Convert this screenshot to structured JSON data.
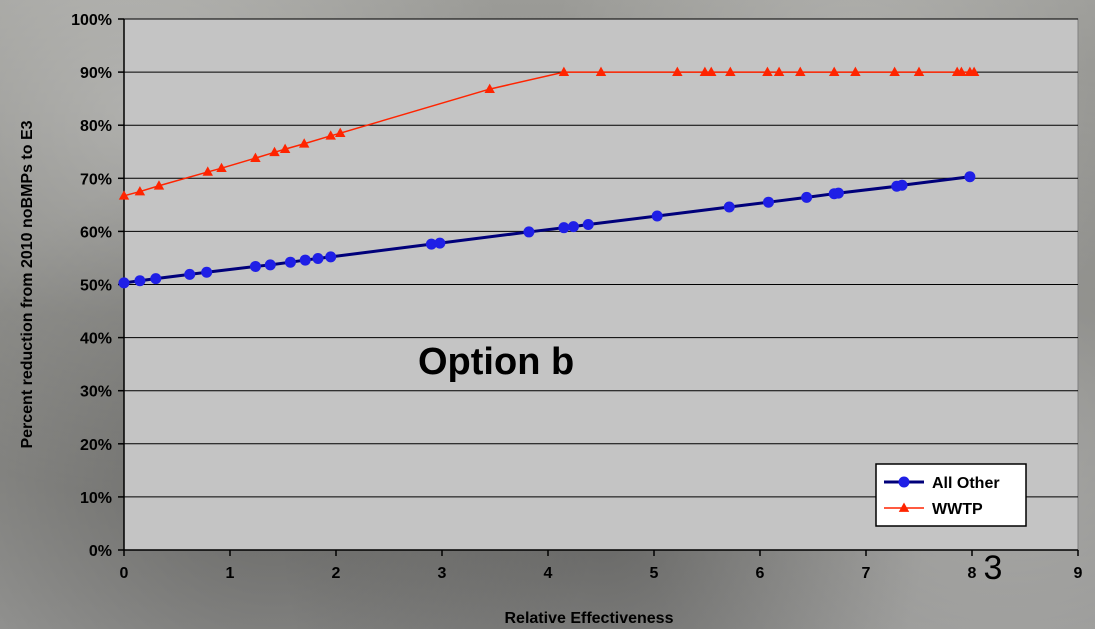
{
  "chart_data": {
    "type": "line",
    "title": "",
    "xlabel": "Relative Effectiveness",
    "ylabel": "Percent reduction from 2010 noBMPs to E3",
    "xlim": [
      0,
      9
    ],
    "ylim": [
      0,
      100
    ],
    "x_ticks": [
      "0",
      "1",
      "2",
      "3",
      "4",
      "5",
      "6",
      "7",
      "8",
      "9"
    ],
    "y_ticks": [
      "0%",
      "10%",
      "20%",
      "30%",
      "40%",
      "50%",
      "60%",
      "70%",
      "80%",
      "90%",
      "100%"
    ],
    "grid": "horizontal",
    "legend_position": "bottom-right",
    "annotation": "Option b",
    "series": [
      {
        "name": "All Other",
        "color": "#1f1fe6",
        "marker": "circle",
        "points": [
          [
            0,
            50.3
          ],
          [
            0.15,
            50.7
          ],
          [
            0.3,
            51.1
          ],
          [
            0.62,
            51.9
          ],
          [
            0.78,
            52.3
          ],
          [
            1.24,
            53.4
          ],
          [
            1.38,
            53.7
          ],
          [
            1.57,
            54.2
          ],
          [
            1.71,
            54.6
          ],
          [
            1.83,
            54.9
          ],
          [
            1.95,
            55.2
          ],
          [
            2.9,
            57.6
          ],
          [
            2.98,
            57.8
          ],
          [
            3.82,
            59.9
          ],
          [
            4.15,
            60.7
          ],
          [
            4.24,
            60.9
          ],
          [
            4.38,
            61.3
          ],
          [
            5.03,
            62.9
          ],
          [
            5.71,
            64.6
          ],
          [
            6.08,
            65.5
          ],
          [
            6.44,
            66.4
          ],
          [
            6.7,
            67.1
          ],
          [
            6.74,
            67.2
          ],
          [
            7.29,
            68.5
          ],
          [
            7.34,
            68.7
          ],
          [
            7.98,
            70.3
          ]
        ]
      },
      {
        "name": "WWTP",
        "color": "#ff2400",
        "marker": "triangle",
        "points": [
          [
            0,
            66.7
          ],
          [
            0.15,
            67.5
          ],
          [
            0.33,
            68.6
          ],
          [
            0.79,
            71.2
          ],
          [
            0.92,
            71.9
          ],
          [
            1.24,
            73.8
          ],
          [
            1.42,
            74.9
          ],
          [
            1.52,
            75.5
          ],
          [
            1.7,
            76.5
          ],
          [
            1.95,
            78
          ],
          [
            2.04,
            78.5
          ],
          [
            3.45,
            86.8
          ],
          [
            4.15,
            90
          ],
          [
            4.5,
            90
          ],
          [
            5.22,
            90
          ],
          [
            5.48,
            90
          ],
          [
            5.54,
            90
          ],
          [
            5.72,
            90
          ],
          [
            6.07,
            90
          ],
          [
            6.18,
            90
          ],
          [
            6.38,
            90
          ],
          [
            6.7,
            90
          ],
          [
            6.9,
            90
          ],
          [
            7.27,
            90
          ],
          [
            7.5,
            90
          ],
          [
            7.86,
            90
          ],
          [
            7.9,
            90
          ],
          [
            7.98,
            90
          ],
          [
            8.02,
            90
          ]
        ]
      }
    ]
  },
  "page_number": "3"
}
